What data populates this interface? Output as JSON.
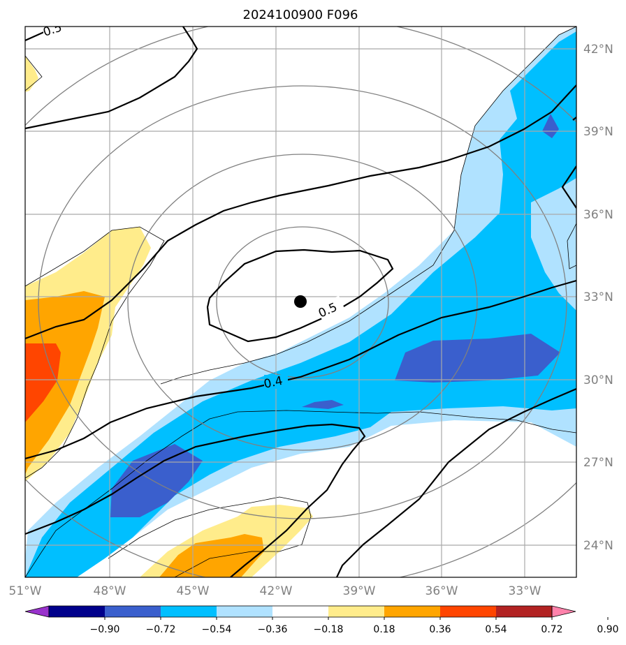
{
  "title": "2024100900 F096",
  "map": {
    "lon_ticks": [
      {
        "label": "51°W"
      },
      {
        "label": "48°W"
      },
      {
        "label": "45°W"
      },
      {
        "label": "42°W"
      },
      {
        "label": "39°W"
      },
      {
        "label": "36°W"
      },
      {
        "label": "33°W"
      }
    ],
    "lat_ticks": [
      {
        "label": "42°N"
      },
      {
        "label": "39°N"
      },
      {
        "label": "36°N"
      },
      {
        "label": "33°N"
      },
      {
        "label": "30°N"
      },
      {
        "label": "27°N"
      },
      {
        "label": "24°N"
      }
    ],
    "contour_labels": [
      "0.5",
      "0.5",
      "0.4"
    ],
    "center_marker": "storm-center"
  },
  "colorbar": {
    "labels": [
      "−0.90",
      "−0.72",
      "−0.54",
      "−0.36",
      "−0.18",
      "0.18",
      "0.36",
      "0.54",
      "0.72",
      "0.90"
    ],
    "colors": [
      "#9932cc",
      "#00008b",
      "#3a5fcd",
      "#00bfff",
      "#b0e2ff",
      "#ffffff",
      "#ffec8b",
      "#ffa500",
      "#ff4500",
      "#b22222",
      "#ff82ab"
    ]
  },
  "shading_colors": {
    "light_blue": "#b0e2ff",
    "blue": "#00bfff",
    "dark_blue": "#3a5fcd",
    "yellow": "#ffec8b",
    "orange": "#ffa500",
    "red_orange": "#ff4500"
  }
}
